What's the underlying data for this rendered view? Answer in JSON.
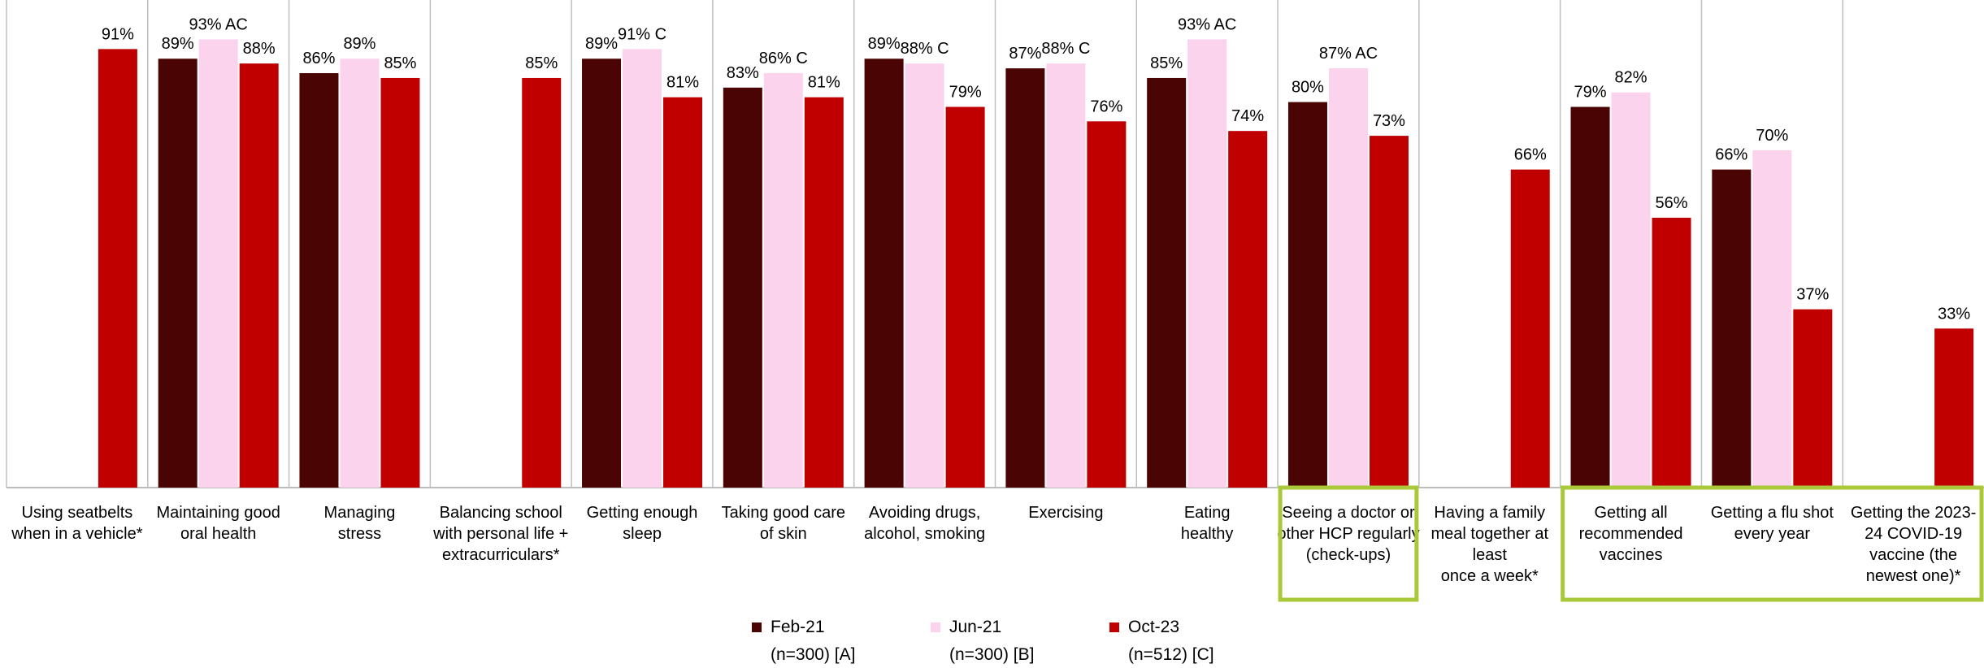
{
  "chart_data": {
    "type": "bar",
    "ylim": [
      0,
      100
    ],
    "grid": false,
    "legend_position": "bottom",
    "categories": [
      [
        "Using seatbelts",
        "when in a vehicle*"
      ],
      [
        "Maintaining good",
        "oral health"
      ],
      [
        "Managing",
        "stress"
      ],
      [
        "Balancing school",
        "with personal life +",
        "extracurriculars*"
      ],
      [
        "Getting enough",
        "sleep"
      ],
      [
        "Taking good care",
        "of skin"
      ],
      [
        "Avoiding drugs,",
        "alcohol, smoking"
      ],
      [
        "Exercising"
      ],
      [
        "Eating",
        "healthy"
      ],
      [
        "Seeing a doctor or",
        "other HCP regularly",
        "(check-ups)"
      ],
      [
        "Having a family",
        "meal together at",
        "least",
        "once a week*"
      ],
      [
        "Getting all",
        "recommended",
        "vaccines"
      ],
      [
        "Getting a flu shot",
        "every year"
      ],
      [
        "Getting the 2023-",
        "24 COVID-19",
        "vaccine (the",
        "newest one)*"
      ]
    ],
    "series": [
      {
        "name": "Feb-21",
        "sample": "(n=300) [A]",
        "color": "#4a0404",
        "values": [
          null,
          89,
          86,
          null,
          89,
          83,
          89,
          87,
          85,
          80,
          null,
          79,
          66,
          null
        ],
        "labels": [
          null,
          "89%",
          "86%",
          null,
          "89%",
          "83%",
          "89%",
          "87%",
          "85%",
          "80%",
          null,
          "79%",
          "66%",
          null
        ]
      },
      {
        "name": "Jun-21",
        "sample": "(n=300) [B]",
        "color": "#fbd3ec",
        "values": [
          null,
          93,
          89,
          null,
          91,
          86,
          88,
          88,
          93,
          87,
          null,
          82,
          70,
          null
        ],
        "labels": [
          null,
          "93% AC",
          "89%",
          null,
          "91% C",
          "86% C",
          "88% C",
          "88% C",
          "93% AC",
          "87% AC",
          null,
          "82%",
          "70%",
          null
        ]
      },
      {
        "name": "Oct-23",
        "sample": "(n=512) [C]",
        "color": "#c00000",
        "values": [
          91,
          88,
          85,
          85,
          81,
          81,
          79,
          76,
          74,
          73,
          66,
          56,
          37,
          33
        ],
        "labels": [
          "91%",
          "88%",
          "85%",
          "85%",
          "81%",
          "81%",
          "79%",
          "76%",
          "74%",
          "73%",
          "66%",
          "56%",
          "37%",
          "33%"
        ]
      }
    ],
    "highlighted_groups": [
      [
        9,
        9
      ],
      [
        11,
        13
      ]
    ],
    "highlight_color": "#a9c93a",
    "divider_color": "#bfbfbf"
  }
}
